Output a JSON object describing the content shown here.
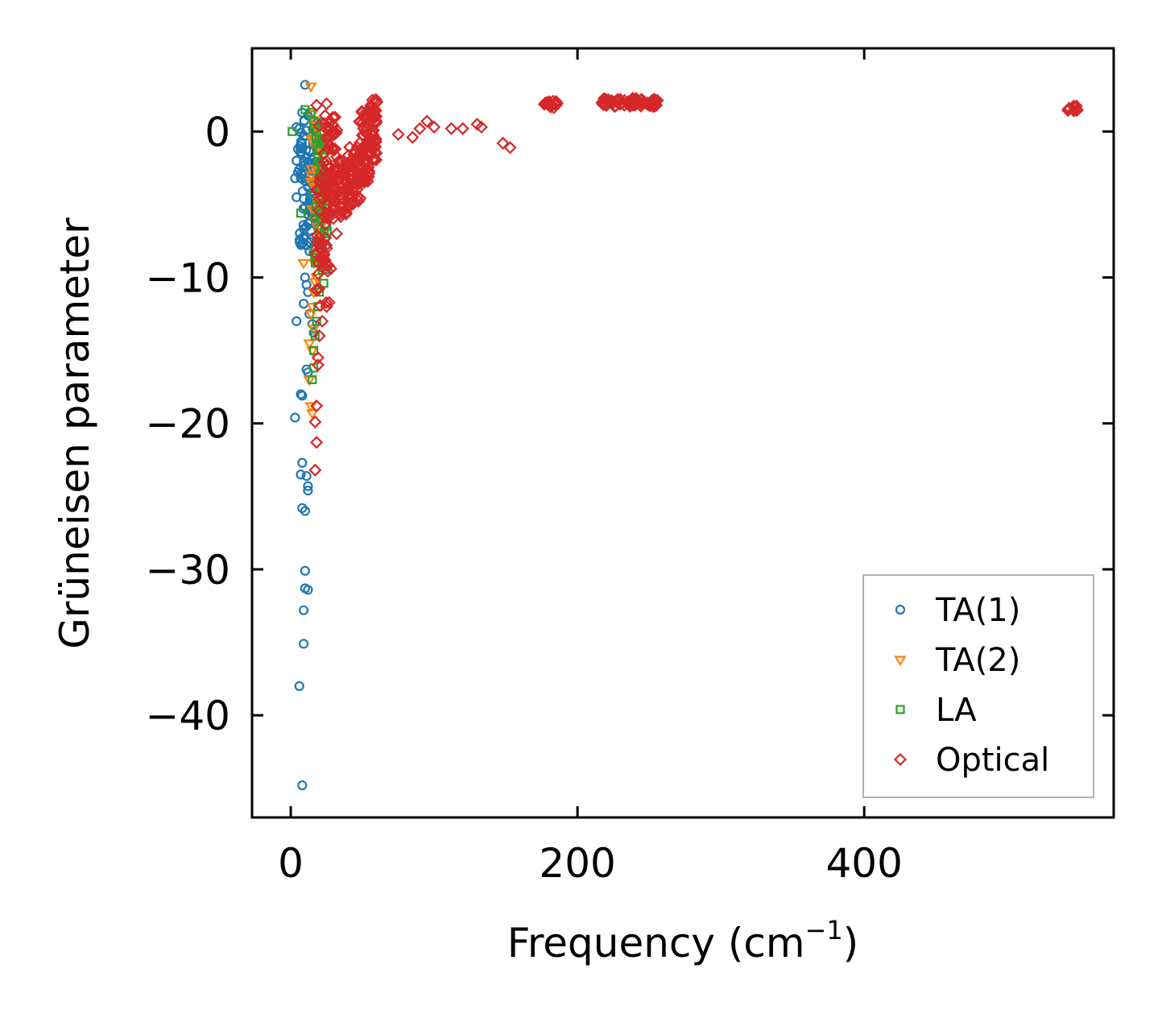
{
  "chart_data": {
    "type": "scatter",
    "title": "",
    "xlabel": "Frequency (cm",
    "xlabel_sup": "−1",
    "xlabel_tail": ")",
    "ylabel": "Grüneisen parameter",
    "xlim": [
      -27,
      574
    ],
    "ylim": [
      -47,
      5.7
    ],
    "xticks": [
      0,
      200,
      400
    ],
    "xtick_labels": [
      "0",
      "200",
      "400"
    ],
    "yticks": [
      0,
      -10,
      -20,
      -30,
      -40
    ],
    "ytick_labels": [
      "0",
      "−10",
      "−20",
      "−30",
      "−40"
    ],
    "grid": false,
    "legend_position": "lower-right",
    "series": [
      {
        "name": "TA(1)",
        "marker": "circle",
        "color": "#1f77b4",
        "points": [
          [
            10,
            3.2
          ],
          [
            8,
            1.3
          ],
          [
            12,
            1.1
          ],
          [
            6,
            0.2
          ],
          [
            4,
            0.3
          ],
          [
            9,
            -0.3
          ],
          [
            5,
            -1.2
          ],
          [
            7,
            -1.5
          ],
          [
            11,
            -1.8
          ],
          [
            13,
            -2.2
          ],
          [
            6,
            -2.6
          ],
          [
            8,
            -3
          ],
          [
            10,
            -3.4
          ],
          [
            12,
            -3.8
          ],
          [
            14,
            -4.2
          ],
          [
            16,
            -4.6
          ],
          [
            15,
            -5
          ],
          [
            17,
            -5.5
          ],
          [
            18,
            -6
          ],
          [
            19,
            -6.5
          ],
          [
            20,
            -7
          ],
          [
            21,
            -7.5
          ],
          [
            22,
            -8
          ],
          [
            9,
            -4.6
          ],
          [
            7,
            -3.2
          ],
          [
            16,
            -8.3
          ],
          [
            23,
            -8.8
          ],
          [
            4,
            -2
          ],
          [
            5,
            -2.8
          ],
          [
            3,
            -3.2
          ],
          [
            4,
            -4.5
          ],
          [
            10,
            -5.2
          ],
          [
            12,
            -6.3
          ],
          [
            14,
            -6.8
          ],
          [
            9,
            -7.2
          ],
          [
            11,
            -7.8
          ],
          [
            13,
            -8.2
          ],
          [
            18,
            -8.5
          ],
          [
            10,
            -10
          ],
          [
            11,
            -10.5
          ],
          [
            12,
            -11
          ],
          [
            9,
            -11.8
          ],
          [
            13,
            -12.5
          ],
          [
            15,
            -13.2
          ],
          [
            16,
            -13.8
          ],
          [
            4,
            -13
          ],
          [
            11,
            -16.3
          ],
          [
            12,
            -16.5
          ],
          [
            7,
            -18
          ],
          [
            8,
            -18.1
          ],
          [
            3,
            -19.6
          ],
          [
            8,
            -22.7
          ],
          [
            7,
            -23.5
          ],
          [
            11,
            -23.6
          ],
          [
            12,
            -24.3
          ],
          [
            12,
            -24.6
          ],
          [
            8,
            -25.8
          ],
          [
            10,
            -26
          ],
          [
            10,
            -30.1
          ],
          [
            10,
            -31.3
          ],
          [
            12,
            -31.4
          ],
          [
            9,
            -32.8
          ],
          [
            9,
            -35.1
          ],
          [
            6,
            -38
          ],
          [
            8,
            -44.8
          ]
        ]
      },
      {
        "name": "TA(2)",
        "marker": "triangle-down",
        "color": "#ff7f0e",
        "points": [
          [
            14,
            3.1
          ],
          [
            15,
            1.2
          ],
          [
            16,
            0.8
          ],
          [
            18,
            0.3
          ],
          [
            17,
            -0.5
          ],
          [
            19,
            -1.2
          ],
          [
            20,
            -2
          ],
          [
            21,
            -3
          ],
          [
            22,
            -4
          ],
          [
            23,
            -5
          ],
          [
            22,
            -6
          ],
          [
            21,
            -7
          ],
          [
            20,
            -8
          ],
          [
            19,
            -9
          ],
          [
            18,
            -10
          ],
          [
            17,
            -10.3
          ],
          [
            16,
            -11
          ],
          [
            15,
            -12
          ],
          [
            14,
            -12.5
          ],
          [
            16,
            -13.5
          ],
          [
            15,
            -15
          ],
          [
            13,
            -17
          ],
          [
            14,
            -18.8
          ],
          [
            15,
            -19.3
          ],
          [
            9,
            -9
          ],
          [
            13,
            -14.5
          ]
        ]
      },
      {
        "name": "LA",
        "marker": "square",
        "color": "#2ca02c",
        "points": [
          [
            1,
            0
          ],
          [
            10,
            1.5
          ],
          [
            14,
            1.3
          ],
          [
            16,
            0.7
          ],
          [
            18,
            0
          ],
          [
            20,
            -1.2
          ],
          [
            22,
            -2.5
          ],
          [
            24,
            -3.5
          ],
          [
            25,
            -4.5
          ],
          [
            26,
            -5.5
          ],
          [
            25,
            -6.5
          ],
          [
            24,
            -7.5
          ],
          [
            23,
            -8.5
          ],
          [
            22,
            -9.5
          ],
          [
            23,
            -10.4
          ],
          [
            20,
            -11
          ],
          [
            19,
            -12
          ],
          [
            18,
            -13
          ],
          [
            17,
            -14
          ],
          [
            16,
            -15
          ],
          [
            16,
            -16.2
          ],
          [
            15,
            -17
          ],
          [
            7,
            -5.6
          ],
          [
            19,
            -9
          ],
          [
            21,
            -6
          ]
        ]
      },
      {
        "name": "Optical",
        "marker": "diamond",
        "color": "#d62728",
        "points": [
          [
            18,
            1.8
          ],
          [
            25,
            1.9
          ],
          [
            24,
            1.1
          ],
          [
            20,
            0.4
          ],
          [
            27,
            -1
          ],
          [
            28,
            -3
          ],
          [
            30,
            -5
          ],
          [
            32,
            -7
          ],
          [
            28,
            -9.4
          ],
          [
            25,
            -12
          ],
          [
            22,
            -13
          ],
          [
            20,
            -14
          ],
          [
            19,
            -15.5
          ],
          [
            19,
            -16
          ],
          [
            18,
            -18.8
          ],
          [
            17,
            -19.9
          ],
          [
            18,
            -21.3
          ],
          [
            17,
            -23.2
          ],
          [
            25,
            -8
          ],
          [
            35,
            -2
          ],
          [
            40,
            -4
          ],
          [
            45,
            -3.5
          ],
          [
            50,
            -2.5
          ],
          [
            55,
            -1
          ],
          [
            56,
            -1.5
          ],
          [
            58,
            1.5
          ],
          [
            60,
            2
          ],
          [
            75,
            -0.2
          ],
          [
            85,
            -0.4
          ],
          [
            90,
            0.2
          ],
          [
            95,
            0.7
          ],
          [
            100,
            0.3
          ],
          [
            112,
            0.2
          ],
          [
            120,
            0.2
          ],
          [
            130,
            0.5
          ],
          [
            133,
            0.3
          ],
          [
            148,
            -0.8
          ],
          [
            153,
            -1.1
          ],
          [
            180,
            1.9
          ],
          [
            185,
            1.8
          ],
          [
            220,
            2.1
          ],
          [
            225,
            2
          ],
          [
            230,
            2.2
          ],
          [
            235,
            1.9
          ],
          [
            240,
            1.8
          ],
          [
            245,
            1.9
          ],
          [
            250,
            1.8
          ],
          [
            255,
            1.8
          ],
          [
            543,
            1.6
          ],
          [
            548,
            1.5
          ]
        ]
      }
    ],
    "optical_clusters": [
      {
        "x_center": 28,
        "x_halfwidth": 5,
        "y_min": -6,
        "y_max": 1,
        "count": 70
      },
      {
        "x_center": 22,
        "x_halfwidth": 5,
        "y_min": -12,
        "y_max": -3,
        "count": 45
      },
      {
        "x_center": 38,
        "x_halfwidth": 5,
        "y_min": -6,
        "y_max": -2,
        "count": 40
      },
      {
        "x_center": 45,
        "x_halfwidth": 5,
        "y_min": -5,
        "y_max": -1,
        "count": 40
      },
      {
        "x_center": 51,
        "x_halfwidth": 4,
        "y_min": -3.5,
        "y_max": 1.5,
        "count": 60
      },
      {
        "x_center": 57,
        "x_halfwidth": 3,
        "y_min": -2,
        "y_max": 2.2,
        "count": 50
      },
      {
        "x_center": 181,
        "x_halfwidth": 5,
        "y_min": 1.6,
        "y_max": 2.1,
        "count": 15
      },
      {
        "x_center": 237,
        "x_halfwidth": 20,
        "y_min": 1.7,
        "y_max": 2.3,
        "count": 60
      },
      {
        "x_center": 546,
        "x_halfwidth": 4,
        "y_min": 1.4,
        "y_max": 1.8,
        "count": 10
      }
    ],
    "acoustic_clusters": [
      {
        "series": 0,
        "x_center": 14,
        "x_halfwidth": 8,
        "y_min": -8,
        "y_max": 1,
        "count": 90
      },
      {
        "series": 1,
        "x_center": 19,
        "x_halfwidth": 5,
        "y_min": -9,
        "y_max": 1,
        "count": 40
      },
      {
        "series": 2,
        "x_center": 21,
        "x_halfwidth": 5,
        "y_min": -10,
        "y_max": 1,
        "count": 40
      }
    ]
  }
}
